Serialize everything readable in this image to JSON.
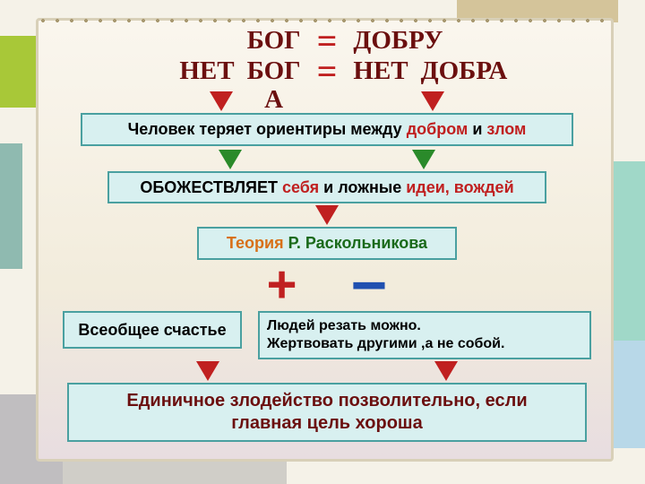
{
  "colors": {
    "darkred": "#6b0f0f",
    "red": "#c02020",
    "teal_border": "#4aa0a0",
    "teal_bg": "#d8f0f0",
    "orange": "#d87018",
    "green": "#2a8a2a",
    "darkgreen": "#1a6a1a",
    "blue": "#2050b0",
    "black": "#000000"
  },
  "eq1": {
    "left": "БОГ",
    "sign": "=",
    "right": "ДОБРУ"
  },
  "eq2": {
    "left_a": "НЕТ",
    "left_b": "БОГ",
    "left_b_suffix": "А",
    "sign": "=",
    "right_a": "НЕТ",
    "right_b": "ДОБРА"
  },
  "box1": {
    "p1": "Человек теряет ориентиры между ",
    "p2": "добром",
    "p3": " и ",
    "p4": "злом"
  },
  "box2": {
    "p1": "ОБОЖЕСТВЛЯЕТ ",
    "p2": "себя",
    "p3": " и ложные ",
    "p4": "идеи, вождей"
  },
  "box3": {
    "p1": "Теория",
    "p2": " Р. Раскольникова"
  },
  "plus": "+",
  "minus": "−",
  "box_left": "Всеобщее счастье",
  "box_right_l1": "Людей резать можно.",
  "box_right_l2": "Жертвовать другими ,а не собой.",
  "bottom_l1": "Единичное злодейство позволительно, если",
  "bottom_l2": "главная цель хороша"
}
